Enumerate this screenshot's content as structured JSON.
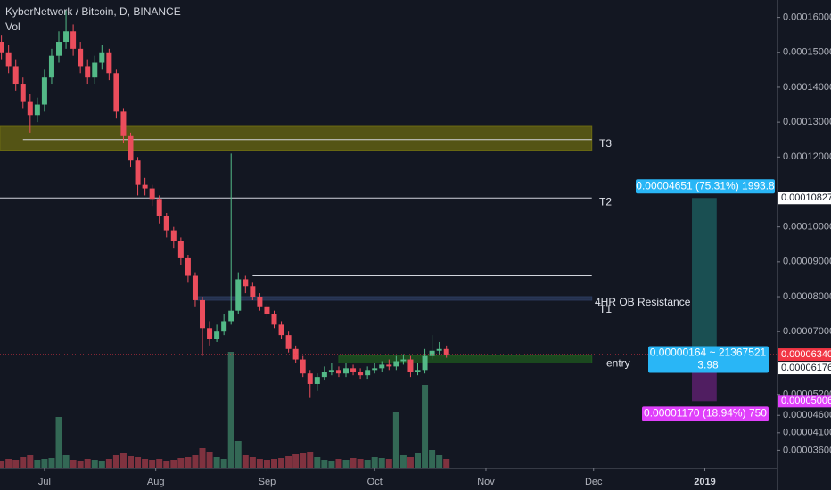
{
  "chart_data": {
    "type": "candlestick",
    "title": "KyberNetwork / Bitcoin, D, BINANCE",
    "subtitle": "Vol",
    "up_color": "#53b987",
    "down_color": "#eb4d5c",
    "x": [
      0,
      2,
      4,
      6,
      8,
      10,
      12,
      14,
      16,
      18,
      20,
      22,
      24,
      26,
      28,
      30,
      32,
      34,
      36,
      38,
      40,
      42,
      44,
      46,
      48,
      50,
      52,
      54,
      56,
      58,
      60,
      62,
      64,
      66,
      68,
      70,
      72,
      74,
      76,
      78,
      80,
      82,
      84,
      86,
      88,
      90,
      92,
      94,
      96,
      98,
      100,
      102,
      104,
      106,
      108,
      110,
      112,
      114,
      116,
      118,
      120,
      122,
      124
    ],
    "open": [
      0.000153,
      0.00015,
      0.000146,
      0.000141,
      0.000136,
      0.000132,
      0.000135,
      0.000143,
      0.000149,
      0.000153,
      0.000156,
      0.000151,
      0.000146,
      0.000143,
      0.000147,
      0.00015,
      0.000144,
      0.000133,
      0.000126,
      0.000119,
      0.000112,
      0.000111,
      0.000108,
      0.000103,
      9.9e-05,
      9.6e-05,
      9.1e-05,
      8.6e-05,
      7.9e-05,
      7.1e-05,
      6.8e-05,
      7e-05,
      7.3e-05,
      7.6e-05,
      8.5e-05,
      8.3e-05,
      8e-05,
      7.7e-05,
      7.5e-05,
      7.2e-05,
      6.9e-05,
      6.5e-05,
      6.2e-05,
      5.8e-05,
      5.5e-05,
      5.7e-05,
      5.85e-05,
      5.9e-05,
      5.8e-05,
      5.95e-05,
      5.85e-05,
      5.75e-05,
      5.9e-05,
      5.95e-05,
      6.05e-05,
      6e-05,
      6.15e-05,
      6.2e-05,
      5.85e-05,
      5.9e-05,
      6.3e-05,
      6.45e-05,
      6.5e-05
    ],
    "high": [
      0.000155,
      0.000152,
      0.000148,
      0.000143,
      0.000138,
      0.000137,
      0.000145,
      0.000151,
      0.000156,
      0.000162,
      0.000158,
      0.000153,
      0.000148,
      0.000149,
      0.000152,
      0.000151,
      0.000145,
      0.000134,
      0.000127,
      0.00012,
      0.000114,
      0.000112,
      0.000109,
      0.000104,
      0.0001,
      9.7e-05,
      9.2e-05,
      8.7e-05,
      8e-05,
      7.3e-05,
      7.2e-05,
      7.5e-05,
      0.000121,
      8.7e-05,
      8.6e-05,
      8.4e-05,
      8.1e-05,
      7.8e-05,
      7.6e-05,
      7.3e-05,
      7e-05,
      6.6e-05,
      6.3e-05,
      5.9e-05,
      5.8e-05,
      6e-05,
      6.1e-05,
      6e-05,
      6.1e-05,
      6.05e-05,
      5.95e-05,
      6e-05,
      6.1e-05,
      6.15e-05,
      6.2e-05,
      6.3e-05,
      6.35e-05,
      6.3e-05,
      6.1e-05,
      6.5e-05,
      6.9e-05,
      6.7e-05,
      6.6e-05
    ],
    "low": [
      0.000148,
      0.000144,
      0.000139,
      0.000134,
      0.000127,
      0.00013,
      0.000133,
      0.000141,
      0.000147,
      0.000151,
      0.000149,
      0.000144,
      0.000141,
      0.000141,
      0.000145,
      0.000142,
      0.000131,
      0.000124,
      0.000117,
      0.000109,
      0.000109,
      0.000106,
      0.000101,
      9.7e-05,
      9.4e-05,
      8.9e-05,
      8.4e-05,
      7.7e-05,
      6.3e-05,
      6.6e-05,
      6.7e-05,
      6.9e-05,
      7.2e-05,
      7.5e-05,
      8.1e-05,
      7.9e-05,
      7.6e-05,
      7.4e-05,
      7.1e-05,
      6.8e-05,
      6.4e-05,
      6.1e-05,
      5.7e-05,
      5.1e-05,
      5.3e-05,
      5.6e-05,
      5.75e-05,
      5.7e-05,
      5.7e-05,
      5.75e-05,
      5.65e-05,
      5.65e-05,
      5.8e-05,
      5.85e-05,
      5.9e-05,
      5.9e-05,
      6.05e-05,
      5.7e-05,
      5.75e-05,
      5.8e-05,
      6.2e-05,
      6.35e-05,
      6.25e-05
    ],
    "close": [
      0.00015,
      0.000146,
      0.000141,
      0.000136,
      0.000132,
      0.000135,
      0.000143,
      0.000149,
      0.000153,
      0.000156,
      0.000151,
      0.000146,
      0.000143,
      0.000147,
      0.00015,
      0.000144,
      0.000133,
      0.000126,
      0.000119,
      0.000112,
      0.000111,
      0.000108,
      0.000103,
      9.9e-05,
      9.6e-05,
      9.1e-05,
      8.6e-05,
      7.9e-05,
      7.1e-05,
      6.8e-05,
      7e-05,
      7.3e-05,
      7.6e-05,
      8.5e-05,
      8.3e-05,
      8e-05,
      7.7e-05,
      7.5e-05,
      7.2e-05,
      6.9e-05,
      6.5e-05,
      6.2e-05,
      5.8e-05,
      5.5e-05,
      5.7e-05,
      5.85e-05,
      5.9e-05,
      5.8e-05,
      5.95e-05,
      5.85e-05,
      5.75e-05,
      5.9e-05,
      5.95e-05,
      6.05e-05,
      6e-05,
      6.15e-05,
      6.2e-05,
      5.85e-05,
      5.9e-05,
      6.3e-05,
      6.45e-05,
      6.5e-05,
      6.34e-05
    ],
    "volume": [
      8,
      10,
      9,
      12,
      14,
      9,
      10,
      11,
      57,
      14,
      9,
      8,
      10,
      9,
      8,
      10,
      14,
      16,
      13,
      12,
      10,
      9,
      10,
      8,
      9,
      11,
      12,
      14,
      22,
      18,
      12,
      10,
      130,
      30,
      14,
      12,
      10,
      9,
      10,
      11,
      13,
      15,
      16,
      18,
      12,
      9,
      8,
      10,
      9,
      11,
      10,
      9,
      12,
      11,
      10,
      63,
      14,
      12,
      16,
      93,
      20,
      14,
      10
    ],
    "xlim": [
      -0.4,
      216
    ],
    "ylim": [
      3.1e-05,
      0.000165
    ],
    "xticks": [
      {
        "value": 12,
        "label": "Jul"
      },
      {
        "value": 43,
        "label": "Aug"
      },
      {
        "value": 74,
        "label": "Sep"
      },
      {
        "value": 104,
        "label": "Oct"
      },
      {
        "value": 135,
        "label": "Nov"
      },
      {
        "value": 165,
        "label": "Dec"
      },
      {
        "value": 196,
        "label": "2019"
      }
    ],
    "yticks": [
      {
        "value": 0.00016,
        "label": "0.00016000"
      },
      {
        "value": 0.00015,
        "label": "0.00015000"
      },
      {
        "value": 0.00014,
        "label": "0.00014000"
      },
      {
        "value": 0.00013,
        "label": "0.00013000"
      },
      {
        "value": 0.00012,
        "label": "0.00012000"
      },
      {
        "value": 0.0001,
        "label": "0.00010000"
      },
      {
        "value": 9e-05,
        "label": "0.00009000"
      },
      {
        "value": 8e-05,
        "label": "0.00008000"
      },
      {
        "value": 7e-05,
        "label": "0.00007000"
      },
      {
        "value": 5.2e-05,
        "label": "0.00005200"
      },
      {
        "value": 4.6e-05,
        "label": "0.00004600"
      },
      {
        "value": 4.1e-05,
        "label": "0.00004100"
      },
      {
        "value": 3.6e-05,
        "label": "0.00003600"
      }
    ],
    "zones": [
      {
        "top": 0.000129,
        "bottom": 0.000122,
        "from": -0.4,
        "to": 164.5,
        "color": "#6b6a12"
      },
      {
        "top": 8e-05,
        "bottom": 7.9e-05,
        "from": 54,
        "to": 164.5,
        "color": "#2c3b5e"
      },
      {
        "top": 6.3e-05,
        "bottom": 6.1e-05,
        "from": 94,
        "to": 164.5,
        "color": "#1f5a1f"
      }
    ],
    "lines": [
      {
        "value": 0.000125,
        "from": 6,
        "to": 164.5
      },
      {
        "value": 0.00010827,
        "from": -0.4,
        "to": 164.5
      },
      {
        "value": 8.6e-05,
        "from": 70,
        "to": 164.5
      }
    ],
    "labels": [
      {
        "text": "T3",
        "value": 0.000125
      },
      {
        "text": "T2",
        "value": 0.00010827
      },
      {
        "text": "4HR OB Resistance",
        "value": 7.95e-05
      },
      {
        "text": "T1",
        "value": 7.75e-05
      },
      {
        "text": "entry",
        "value": 6.2e-05
      }
    ],
    "price_line": {
      "value": 6.34e-05,
      "color": "#f23645"
    },
    "position": {
      "from": 192.4,
      "to": 199.3,
      "entry": 6.176e-05,
      "target": 0.00010827,
      "stop": 5.006e-05,
      "target_label": "0.00004651 (75.31%) 1993.8",
      "entry_label": [
        "0.00000164 ~ 21367521",
        "3.98"
      ],
      "stop_label": "0.00001170 (18.94%) 750"
    },
    "price_tags": [
      {
        "value": 0.00010827,
        "label": "0.00010827",
        "color": "#ffffff",
        "text_color": "#131722"
      },
      {
        "value": 6.34e-05,
        "label": "0.00006340",
        "color": "#f23645",
        "text_color": "#ffffff"
      },
      {
        "value": 6.176e-05,
        "label": "0.00006176",
        "color": "#ffffff",
        "text_color": "#131722"
      },
      {
        "value": 5.006e-05,
        "label": "0.00005006",
        "color": "#e040fb",
        "text_color": "#ffffff"
      }
    ]
  }
}
